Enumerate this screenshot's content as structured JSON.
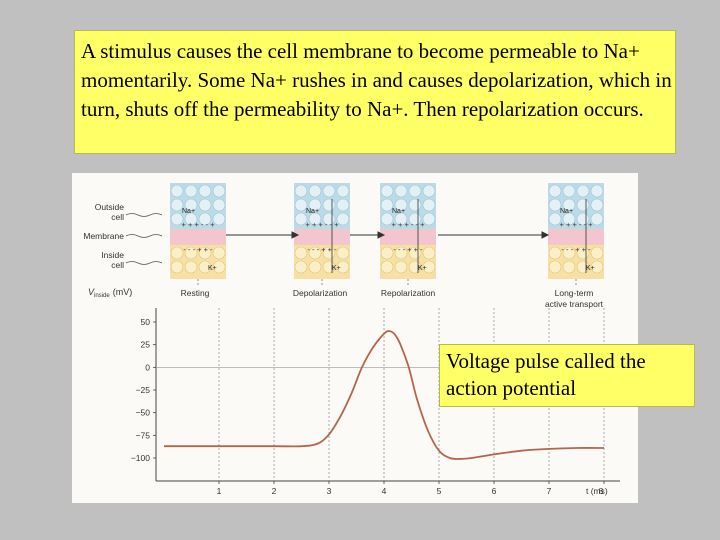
{
  "caption_top": "A stimulus causes the cell membrane to become permeable to Na+ momentarily.  Some Na+ rushes in and causes depolarization, which in turn, shuts off the permeability to Na+.  Then repolarization occurs.",
  "caption_bottom": "Voltage pulse called the action potential",
  "figure": {
    "side_labels": {
      "outside": "Outside",
      "outside2": "cell",
      "membrane": "Membrane",
      "inside": "Inside",
      "inside2": "cell"
    },
    "stages": [
      "Resting",
      "Depolarization",
      "Repolarization",
      "Long-term",
      "active transport"
    ],
    "ion_na": "Na+",
    "ion_k": "K+",
    "plus_row": "+ + + - - +",
    "minus_row": "- - - + + -",
    "y_axis_label_v": "V",
    "y_axis_label_sub": "inside",
    "y_axis_label_unit": "(mV)",
    "x_axis_label": "t (ms)",
    "colors": {
      "membrane": "#f3c6cf",
      "outside": "#bcdbe8",
      "inside": "#f6e0a4",
      "curve": "#b5654a"
    }
  },
  "chart_data": {
    "type": "line",
    "title": "",
    "xlabel": "t (ms)",
    "ylabel": "Vinside (mV)",
    "xlim": [
      0,
      8
    ],
    "ylim": [
      -100,
      50
    ],
    "x_ticks": [
      1,
      2,
      3,
      4,
      5,
      6,
      7,
      8
    ],
    "y_ticks": [
      50,
      25,
      0,
      -25,
      -50,
      -75,
      -100
    ],
    "series": [
      {
        "x": [
          0,
          1,
          2,
          2.5,
          2.8,
          3.0,
          3.2,
          3.4,
          3.6,
          3.8,
          4.0,
          4.1,
          4.2,
          4.3,
          4.45,
          4.6,
          4.8,
          5.0,
          5.2,
          5.4,
          5.6,
          6.0,
          6.5,
          7.0,
          7.5,
          8.0
        ],
        "y": [
          -87,
          -87,
          -87,
          -87,
          -84,
          -74,
          -55,
          -30,
          0,
          22,
          37,
          40,
          36,
          25,
          0,
          -35,
          -70,
          -92,
          -100,
          -101,
          -100,
          -96,
          -92,
          -90,
          -89,
          -89
        ]
      }
    ]
  }
}
